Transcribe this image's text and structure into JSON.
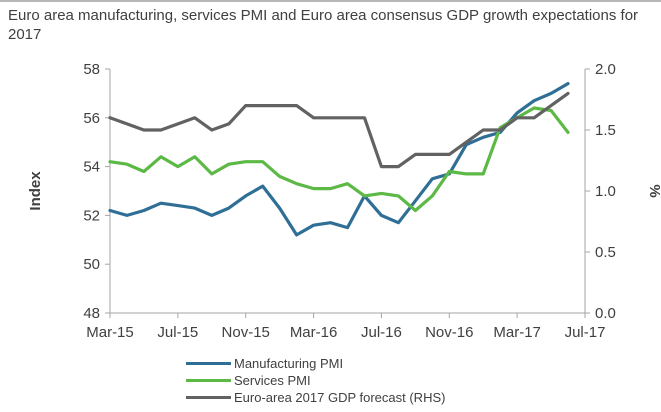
{
  "title": "Euro area manufacturing, services PMI and Euro area consensus GDP growth expectations for 2017",
  "chart_data": {
    "type": "line",
    "title": "Euro area manufacturing, services PMI and Euro area consensus GDP growth expectations for 2017",
    "ylabel": "Index",
    "ylabel_right": "%",
    "ylim": [
      48,
      58
    ],
    "ylim_right": [
      0.0,
      2.0
    ],
    "yticks": [
      "48",
      "50",
      "52",
      "54",
      "56",
      "58"
    ],
    "yticks_right": [
      "0.0",
      "0.5",
      "1.0",
      "1.5",
      "2.0"
    ],
    "xtick_labels": [
      "Mar-15",
      "Jul-15",
      "Nov-15",
      "Mar-16",
      "Jul-16",
      "Nov-16",
      "Mar-17",
      "Jul-17"
    ],
    "x": [
      "Mar-15",
      "Apr-15",
      "May-15",
      "Jun-15",
      "Jul-15",
      "Aug-15",
      "Sep-15",
      "Oct-15",
      "Nov-15",
      "Dec-15",
      "Jan-16",
      "Feb-16",
      "Mar-16",
      "Apr-16",
      "May-16",
      "Jun-16",
      "Jul-16",
      "Aug-16",
      "Sep-16",
      "Oct-16",
      "Nov-16",
      "Dec-16",
      "Jan-17",
      "Feb-17",
      "Mar-17",
      "Apr-17",
      "May-17",
      "Jun-17"
    ],
    "gdp_x": [
      "Mar-15",
      "Apr-15",
      "May-15",
      "Jun-15",
      "Jul-15",
      "Aug-15",
      "Sep-15",
      "Oct-15",
      "Nov-15",
      "Dec-15",
      "Jan-16",
      "Feb-16",
      "Mar-16",
      "Apr-16",
      "May-16",
      "Jun-16",
      "Jul-16",
      "Aug-16",
      "Sep-16",
      "Oct-16",
      "Nov-16",
      "Dec-16",
      "Jan-17",
      "Feb-17",
      "Mar-17",
      "Apr-17",
      "May-17",
      "Jun-17"
    ],
    "series": [
      {
        "name": "Manufacturing PMI",
        "axis": "left",
        "color": "#2f6f95",
        "values": [
          52.2,
          52.0,
          52.2,
          52.5,
          52.4,
          52.3,
          52.0,
          52.3,
          52.8,
          53.2,
          52.3,
          51.2,
          51.6,
          51.7,
          51.5,
          52.8,
          52.0,
          51.7,
          52.6,
          53.5,
          53.7,
          54.9,
          55.2,
          55.4,
          56.2,
          56.7,
          57.0,
          57.4
        ]
      },
      {
        "name": "Services PMI",
        "axis": "left",
        "color": "#5cb946",
        "values": [
          54.2,
          54.1,
          53.8,
          54.4,
          54.0,
          54.4,
          53.7,
          54.1,
          54.2,
          54.2,
          53.6,
          53.3,
          53.1,
          53.1,
          53.3,
          52.8,
          52.9,
          52.8,
          52.2,
          52.8,
          53.8,
          53.7,
          53.7,
          55.6,
          56.0,
          56.4,
          56.3,
          55.4
        ]
      },
      {
        "name": "Euro-area 2017 GDP forecast (RHS)",
        "axis": "right",
        "color": "#626262",
        "values": [
          1.6,
          1.55,
          1.5,
          1.5,
          1.55,
          1.6,
          1.5,
          1.55,
          1.7,
          1.7,
          1.7,
          1.7,
          1.6,
          1.6,
          1.6,
          1.6,
          1.2,
          1.2,
          1.3,
          1.3,
          1.3,
          1.4,
          1.5,
          1.5,
          1.6,
          1.6,
          1.7,
          1.8
        ]
      }
    ],
    "legend_position": "bottom",
    "grid": false
  },
  "legend": [
    {
      "label": "Manufacturing PMI",
      "color": "#2f6f95"
    },
    {
      "label": "Services PMI",
      "color": "#5cb946"
    },
    {
      "label": "Euro-area 2017 GDP forecast (RHS)",
      "color": "#626262"
    }
  ]
}
